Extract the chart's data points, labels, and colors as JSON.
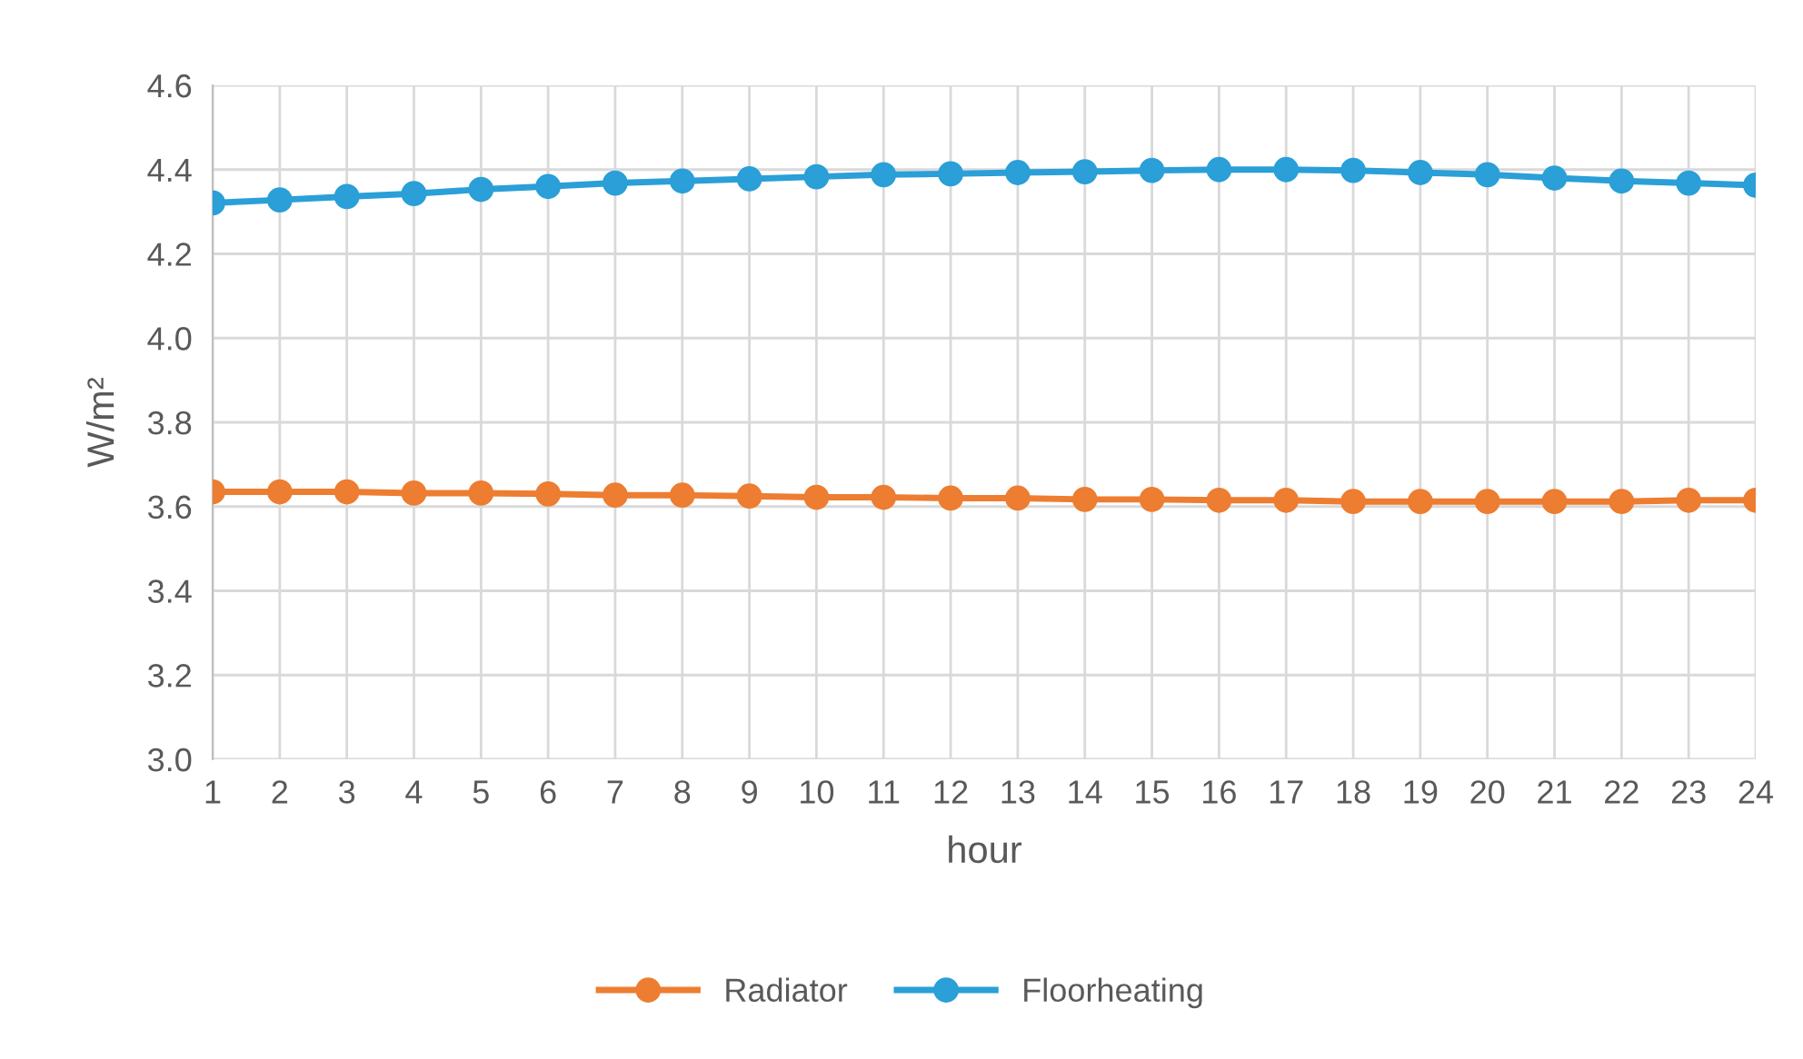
{
  "chart_data": {
    "type": "line",
    "xlabel": "hour",
    "ylabel": "W/m²",
    "categories": [
      "1",
      "2",
      "3",
      "4",
      "5",
      "6",
      "7",
      "8",
      "9",
      "10",
      "11",
      "12",
      "13",
      "14",
      "15",
      "16",
      "17",
      "18",
      "19",
      "20",
      "21",
      "22",
      "23",
      "24"
    ],
    "series": [
      {
        "name": "Radiator",
        "color": "#ed7d31",
        "values": [
          3.635,
          3.635,
          3.635,
          3.632,
          3.632,
          3.63,
          3.627,
          3.627,
          3.625,
          3.622,
          3.622,
          3.62,
          3.62,
          3.617,
          3.617,
          3.615,
          3.615,
          3.612,
          3.612,
          3.612,
          3.612,
          3.612,
          3.615,
          3.615
        ]
      },
      {
        "name": "Floorheating",
        "color": "#2a9fd8",
        "values": [
          4.321,
          4.328,
          4.336,
          4.343,
          4.353,
          4.36,
          4.368,
          4.373,
          4.378,
          4.383,
          4.388,
          4.39,
          4.393,
          4.395,
          4.398,
          4.4,
          4.4,
          4.398,
          4.393,
          4.388,
          4.38,
          4.373,
          4.368,
          4.363
        ]
      }
    ],
    "ylim": [
      3.0,
      4.6
    ],
    "yticks": [
      {
        "value": 3.0,
        "label": "3.0"
      },
      {
        "value": 3.2,
        "label": "3.2"
      },
      {
        "value": 3.4,
        "label": "3.4"
      },
      {
        "value": 3.6,
        "label": "3.6"
      },
      {
        "value": 3.8,
        "label": "3.8"
      },
      {
        "value": 4.0,
        "label": "4.0"
      },
      {
        "value": 4.2,
        "label": "4.2"
      },
      {
        "value": 4.4,
        "label": "4.4"
      },
      {
        "value": 4.6,
        "label": "4.6"
      }
    ],
    "grid": true,
    "legend": "bottom",
    "marker": "circle",
    "line_style": "solid"
  }
}
